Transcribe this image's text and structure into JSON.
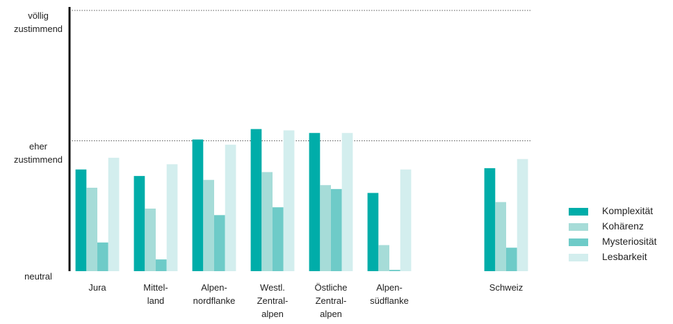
{
  "chart_data": {
    "type": "bar",
    "categories": [
      "Jura",
      "Mittel-\nland",
      "Alpen-\nnordflanke",
      "Westl.\nZentral-\nalpen",
      "Östliche\nZentral-\nalpen",
      "Alpen-\nsüdflanke",
      null,
      "Schweiz"
    ],
    "series": [
      {
        "name": "Komplexität",
        "color": "#00ada9",
        "values": [
          0.78,
          0.73,
          1.01,
          1.09,
          1.06,
          0.6,
          null,
          0.79
        ]
      },
      {
        "name": "Kohärenz",
        "color": "#a6dcd8",
        "values": [
          0.64,
          0.48,
          0.7,
          0.76,
          0.66,
          0.2,
          null,
          0.53
        ]
      },
      {
        "name": "Mysteriosität",
        "color": "#6ecbc8",
        "values": [
          0.22,
          0.09,
          0.43,
          0.49,
          0.63,
          0.01,
          null,
          0.18
        ]
      },
      {
        "name": "Lesbarkeit",
        "color": "#d3eeee",
        "values": [
          0.87,
          0.82,
          0.97,
          1.08,
          1.06,
          0.78,
          null,
          0.86
        ]
      }
    ],
    "ylim": [
      0,
      2
    ],
    "yticks": [
      {
        "value": 0,
        "label": "neutral"
      },
      {
        "value": 1,
        "label": "eher\nzustimmend"
      },
      {
        "value": 2,
        "label": "völlig\nzustimmend"
      }
    ],
    "grid": true,
    "legend": "right"
  }
}
